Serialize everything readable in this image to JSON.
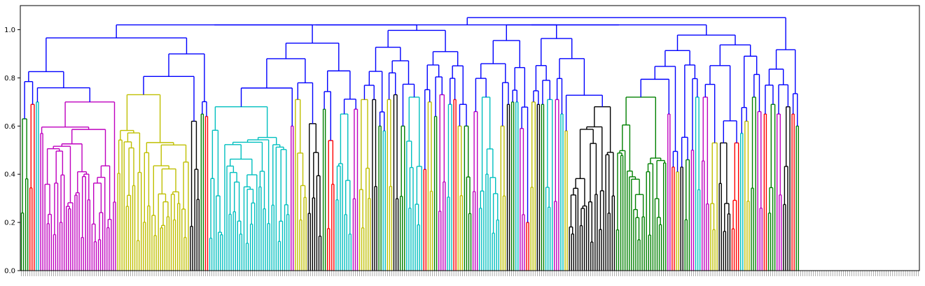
{
  "chart_data": {
    "type": "dendrogram",
    "title": "",
    "xlabel": "",
    "ylabel": "",
    "ylim": [
      0,
      1.1
    ],
    "y_ticks": [
      "0.0",
      "0.2",
      "0.4",
      "0.6",
      "0.8",
      "1.0"
    ],
    "y_tick_values": [
      0.0,
      0.2,
      0.4,
      0.6,
      0.8,
      1.0
    ],
    "grid": false,
    "leaf_count": 420,
    "root_height": 1.05,
    "above_threshold_color": "#0000ff",
    "clusters": [
      {
        "color": "#008000",
        "leaves": 4,
        "height": 0.63
      },
      {
        "color": "#ff0000",
        "leaves": 3,
        "height": 0.69
      },
      {
        "color": "#00bfbf",
        "leaves": 2,
        "height": 0.7
      },
      {
        "color": "#bf00bf",
        "leaves": 36,
        "height": 0.7
      },
      {
        "color": "#bfbf00",
        "leaves": 34,
        "height": 0.73
      },
      {
        "color": "#000000",
        "leaves": 5,
        "height": 0.62
      },
      {
        "color": "#008000",
        "leaves": 2,
        "height": 0.65
      },
      {
        "color": "#ff0000",
        "leaves": 2,
        "height": 0.64
      },
      {
        "color": "#00bfbf",
        "leaves": 38,
        "height": 0.68
      },
      {
        "color": "#bf00bf",
        "leaves": 2,
        "height": 0.6
      },
      {
        "color": "#bfbf00",
        "leaves": 6,
        "height": 0.71
      },
      {
        "color": "#000000",
        "leaves": 7,
        "height": 0.61
      },
      {
        "color": "#008000",
        "leaves": 2,
        "height": 0.67
      },
      {
        "color": "#ff0000",
        "leaves": 4,
        "height": 0.54
      },
      {
        "color": "#00bfbf",
        "leaves": 8,
        "height": 0.65
      },
      {
        "color": "#bf00bf",
        "leaves": 3,
        "height": 0.67
      },
      {
        "color": "#bfbf00",
        "leaves": 6,
        "height": 0.71
      },
      {
        "color": "#000000",
        "leaves": 3,
        "height": 0.71
      },
      {
        "color": "#008000",
        "leaves": 2,
        "height": 0.6
      },
      {
        "color": "#00bfbf",
        "leaves": 2,
        "height": 0.58
      },
      {
        "color": "#bfbf00",
        "leaves": 3,
        "height": 0.71
      },
      {
        "color": "#000000",
        "leaves": 3,
        "height": 0.73
      },
      {
        "color": "#008000",
        "leaves": 3,
        "height": 0.6
      },
      {
        "color": "#00bfbf",
        "leaves": 8,
        "height": 0.72
      },
      {
        "color": "#ff0000",
        "leaves": 2,
        "height": 0.42
      },
      {
        "color": "#bfbf00",
        "leaves": 3,
        "height": 0.7
      },
      {
        "color": "#008000",
        "leaves": 2,
        "height": 0.64
      },
      {
        "color": "#bf00bf",
        "leaves": 4,
        "height": 0.73
      },
      {
        "color": "#00bfbf",
        "leaves": 3,
        "height": 0.69
      },
      {
        "color": "#ff0000",
        "leaves": 2,
        "height": 0.71
      },
      {
        "color": "#bfbf00",
        "leaves": 3,
        "height": 0.6
      },
      {
        "color": "#008000",
        "leaves": 4,
        "height": 0.6
      },
      {
        "color": "#bf00bf",
        "leaves": 3,
        "height": 0.66
      },
      {
        "color": "#00bfbf",
        "leaves": 10,
        "height": 0.72
      },
      {
        "color": "#bfbf00",
        "leaves": 3,
        "height": 0.6
      },
      {
        "color": "#000000",
        "leaves": 2,
        "height": 0.69
      },
      {
        "color": "#008000",
        "leaves": 2,
        "height": 0.7
      },
      {
        "color": "#00bfbf",
        "leaves": 2,
        "height": 0.7
      },
      {
        "color": "#bf00bf",
        "leaves": 3,
        "height": 0.59
      },
      {
        "color": "#ff0000",
        "leaves": 2,
        "height": 0.2
      },
      {
        "color": "#bfbf00",
        "leaves": 3,
        "height": 0.7
      },
      {
        "color": "#000000",
        "leaves": 2,
        "height": 0.69
      },
      {
        "color": "#008000",
        "leaves": 2,
        "height": 0.69
      },
      {
        "color": "#00bfbf",
        "leaves": 4,
        "height": 0.71
      },
      {
        "color": "#bf00bf",
        "leaves": 3,
        "height": 0.71
      },
      {
        "color": "#00bfbf",
        "leaves": 2,
        "height": 0.65
      },
      {
        "color": "#bfbf00",
        "leaves": 2,
        "height": 0.58
      },
      {
        "color": "#000000",
        "leaves": 22,
        "height": 0.68
      },
      {
        "color": "#008000",
        "leaves": 24,
        "height": 0.72
      },
      {
        "color": "#bf00bf",
        "leaves": 2,
        "height": 0.65
      },
      {
        "color": "#ff0000",
        "leaves": 2,
        "height": 0.43
      },
      {
        "color": "#bfbf00",
        "leaves": 2,
        "height": 0.41
      },
      {
        "color": "#000000",
        "leaves": 2,
        "height": 0.43
      },
      {
        "color": "#008000",
        "leaves": 3,
        "height": 0.46
      },
      {
        "color": "#bf00bf",
        "leaves": 2,
        "height": 0.5
      },
      {
        "color": "#00bfbf",
        "leaves": 3,
        "height": 0.72
      },
      {
        "color": "#bf00bf",
        "leaves": 4,
        "height": 0.72
      },
      {
        "color": "#bfbf00",
        "leaves": 4,
        "height": 0.53
      },
      {
        "color": "#000000",
        "leaves": 6,
        "height": 0.53
      },
      {
        "color": "#ff0000",
        "leaves": 4,
        "height": 0.53
      },
      {
        "color": "#00bfbf",
        "leaves": 2,
        "height": 0.57
      },
      {
        "color": "#bfbf00",
        "leaves": 3,
        "height": 0.62
      },
      {
        "color": "#008000",
        "leaves": 3,
        "height": 0.72
      },
      {
        "color": "#bf00bf",
        "leaves": 3,
        "height": 0.66
      },
      {
        "color": "#ff0000",
        "leaves": 2,
        "height": 0.65
      },
      {
        "color": "#008000",
        "leaves": 4,
        "height": 0.69
      },
      {
        "color": "#bf00bf",
        "leaves": 3,
        "height": 0.65
      },
      {
        "color": "#000000",
        "leaves": 4,
        "height": 0.68
      },
      {
        "color": "#ff0000",
        "leaves": 2,
        "height": 0.65
      },
      {
        "color": "#008000",
        "leaves": 2,
        "height": 0.6
      }
    ]
  }
}
